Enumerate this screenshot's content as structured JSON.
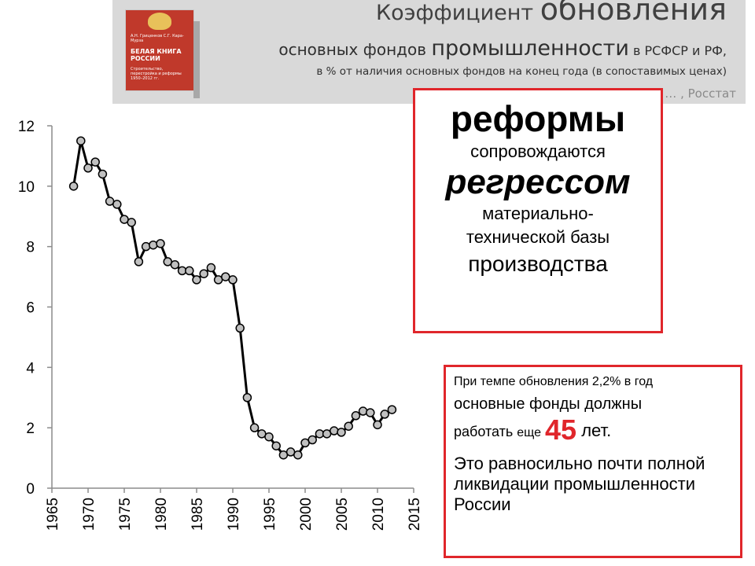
{
  "header": {
    "title_prefix": "Коэффициент ",
    "title_main": "обновления",
    "subtitle_part1": "основных фондов ",
    "subtitle_part2": "промышленности",
    "subtitle_part3": " в РСФСР и РФ,",
    "note": "в % от наличия основных фондов на конец года (в сопоставимых ценах)",
    "source": "Источник данных: … , Росстат"
  },
  "book": {
    "authors": "А.Н. Гриценков С.Г. Кара-Мурза",
    "title": "БЕЛАЯ КНИГА РОССИИ",
    "subtitle": "Строительство, перестройка и реформы 1950–2012 гг."
  },
  "chart_data": {
    "type": "line",
    "title": "",
    "xlabel": "",
    "ylabel": "",
    "xlim": [
      1965,
      2015
    ],
    "ylim": [
      0,
      12
    ],
    "xticks": [
      1965,
      1970,
      1975,
      1980,
      1985,
      1990,
      1995,
      2000,
      2005,
      2010,
      2015
    ],
    "yticks": [
      0,
      2,
      4,
      6,
      8,
      10,
      12
    ],
    "marker": "circle",
    "marker_fill": "#c0c0c0",
    "line_color": "#000000",
    "grid": false,
    "series": [
      {
        "x": [
          1968,
          1969,
          1970,
          1971,
          1972,
          1973,
          1974,
          1975,
          1976,
          1977,
          1978,
          1979,
          1980,
          1981,
          1982,
          1983,
          1984,
          1985,
          1986,
          1987,
          1988,
          1989,
          1990,
          1991,
          1992,
          1993,
          1994,
          1995,
          1996,
          1997,
          1998,
          1999,
          2000,
          2001,
          2002,
          2003,
          2004,
          2005,
          2006,
          2007,
          2008,
          2009,
          2010,
          2011,
          2012
        ],
        "y": [
          10.0,
          11.5,
          10.6,
          10.8,
          10.4,
          9.5,
          9.4,
          8.9,
          8.8,
          7.5,
          8.0,
          8.05,
          8.1,
          7.5,
          7.4,
          7.2,
          7.2,
          6.9,
          7.1,
          7.3,
          6.9,
          7.0,
          6.9,
          5.3,
          3.0,
          2.0,
          1.8,
          1.7,
          1.4,
          1.1,
          1.2,
          1.1,
          1.5,
          1.6,
          1.8,
          1.8,
          1.9,
          1.85,
          2.05,
          2.4,
          2.55,
          2.5,
          2.1,
          2.45,
          2.6
        ]
      }
    ]
  },
  "reform_box": {
    "line1": "реформы",
    "line2": "сопровождаются",
    "line3": "регрессом",
    "line4": "материально-",
    "line5": "технической базы",
    "line6": "производства"
  },
  "note_box": {
    "line1": "При темпе обновления 2,2% в год",
    "line2": "основные фонды должны",
    "line3_a": "работать ",
    "line3_b": "еще",
    "line3_num": "45",
    "line3_c": " лет.",
    "line4": "Это равносильно почти полной ликвидации промышленности России"
  },
  "colors": {
    "accent_red": "#e0262b",
    "header_bg": "#d9d9d9"
  }
}
